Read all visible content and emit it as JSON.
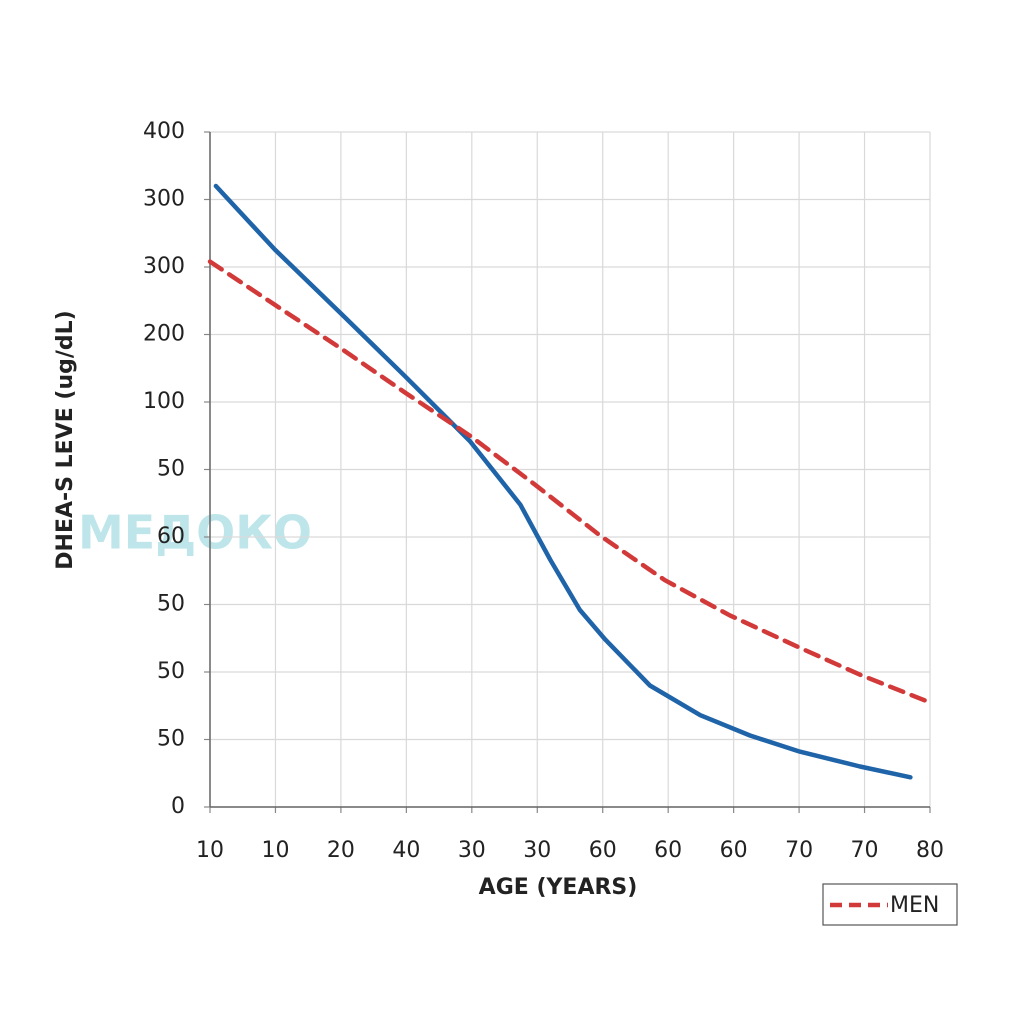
{
  "chart_data": {
    "type": "line",
    "xlabel": "AGE (YEARS)",
    "ylabel": "DHEA-S LEVE  (ug/dL)",
    "watermark": "МЕДОКО",
    "xlim": [
      0,
      11
    ],
    "xticks": [
      {
        "value": 0,
        "label": "10"
      },
      {
        "value": 1,
        "label": "10"
      },
      {
        "value": 2,
        "label": "20"
      },
      {
        "value": 3,
        "label": "40"
      },
      {
        "value": 4,
        "label": "30"
      },
      {
        "value": 5,
        "label": "30"
      },
      {
        "value": 6,
        "label": "60"
      },
      {
        "value": 7,
        "label": "60"
      },
      {
        "value": 8,
        "label": "60"
      },
      {
        "value": 9,
        "label": "70"
      },
      {
        "value": 10,
        "label": "70"
      },
      {
        "value": 11,
        "label": "80"
      }
    ],
    "ylim": [
      0,
      500
    ],
    "yticks": [
      0,
      50,
      {
        "value": 100,
        "label": "50"
      },
      {
        "value": 150,
        "label": "50"
      },
      {
        "value": 200,
        "label": "60"
      },
      {
        "value": 250,
        "label": "50"
      },
      {
        "value": 300,
        "label": "100"
      },
      {
        "value": 350,
        "label": "200"
      },
      {
        "value": 400,
        "label": "300"
      },
      {
        "value": 450,
        "label": "300"
      },
      {
        "value": 500,
        "label": "400"
      }
    ],
    "grid": true,
    "legend": "bottom-right",
    "series": [
      {
        "color": "#1f64a8",
        "dash": false,
        "x": [
          0.09,
          0.99,
          1.99,
          2.98,
          3.97,
          4.74,
          5.2,
          5.65,
          6.04,
          6.72,
          7.49,
          8.25,
          9.01,
          9.93,
          10.7
        ],
        "values": [
          460,
          413,
          366,
          319,
          271,
          224,
          183,
          146,
          124,
          90,
          68,
          53,
          41,
          30,
          22
        ]
      },
      {
        "name": "MEN",
        "color": "#d23a3a",
        "dash": true,
        "x": [
          0,
          0.99,
          1.99,
          2.98,
          3.97,
          4.96,
          5.96,
          6.95,
          7.94,
          9.01,
          9.93,
          10.92
        ],
        "values": [
          404,
          372,
          340,
          307,
          275,
          239,
          201,
          168,
          142,
          118,
          98,
          79
        ]
      }
    ]
  }
}
